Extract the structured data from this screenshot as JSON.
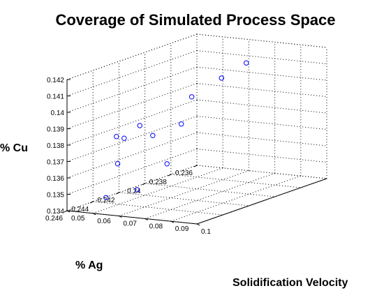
{
  "chart_data": {
    "type": "scatter",
    "title": "Coverage of Simulated Process Space",
    "xlabel": "Solidification Velocity",
    "ylabel": "% Ag",
    "zlabel": "% Cu",
    "x_ticks": [
      "0.05",
      "0.06",
      "0.07",
      "0.08",
      "0.09",
      "0.1"
    ],
    "y_ticks": [
      "0.236",
      "0.238",
      "0.24",
      "0.242",
      "0.244",
      "0.246"
    ],
    "z_ticks": [
      "0.134",
      "0.135",
      "0.136",
      "0.137",
      "0.138",
      "0.139",
      "0.14",
      "0.141",
      "0.142"
    ],
    "xlim": [
      0.05,
      0.1
    ],
    "ylim": [
      0.236,
      0.246
    ],
    "zlim": [
      0.134,
      0.142
    ],
    "grid": true,
    "marker": "o",
    "marker_color": "#0000ff",
    "points": [
      {
        "x": 0.0575,
        "y": 0.2445,
        "z": 0.1345
      },
      {
        "x": 0.06,
        "y": 0.2426,
        "z": 0.1345
      },
      {
        "x": 0.06,
        "y": 0.2441,
        "z": 0.1365
      },
      {
        "x": 0.065,
        "y": 0.2413,
        "z": 0.1358
      },
      {
        "x": 0.063,
        "y": 0.2448,
        "z": 0.1384
      },
      {
        "x": 0.064,
        "y": 0.2444,
        "z": 0.1382
      },
      {
        "x": 0.066,
        "y": 0.2426,
        "z": 0.1379
      },
      {
        "x": 0.069,
        "y": 0.2442,
        "z": 0.139
      },
      {
        "x": 0.08,
        "y": 0.2432,
        "z": 0.139
      },
      {
        "x": 0.0865,
        "y": 0.2437,
        "z": 0.1409
      },
      {
        "x": 0.092,
        "y": 0.2425,
        "z": 0.1418
      },
      {
        "x": 0.099,
        "y": 0.242,
        "z": 0.1427
      }
    ]
  }
}
